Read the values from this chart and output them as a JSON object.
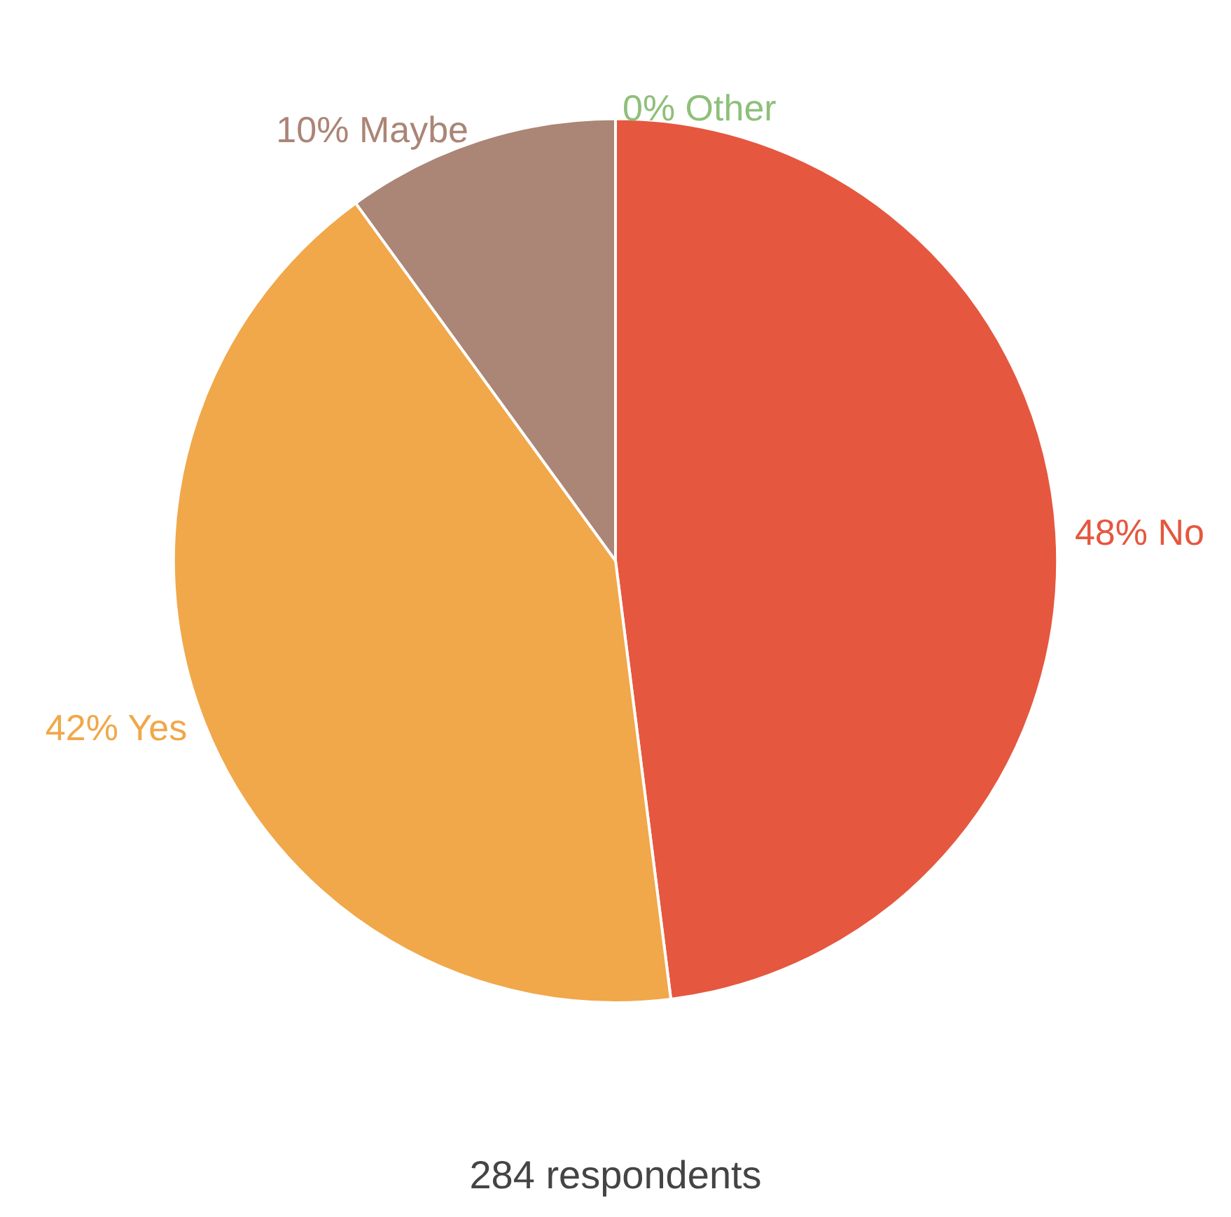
{
  "chart_data": {
    "type": "pie",
    "categories": [
      "No",
      "Yes",
      "Maybe",
      "Other"
    ],
    "values": [
      48,
      42,
      10,
      0
    ],
    "colors": [
      "#e5573f",
      "#f0a84a",
      "#ab8576",
      "#8fbf7a"
    ],
    "value_labels": [
      "48%",
      "42%",
      "10%",
      "0%"
    ],
    "legend": false,
    "annotations": [
      "284 respondents"
    ]
  }
}
